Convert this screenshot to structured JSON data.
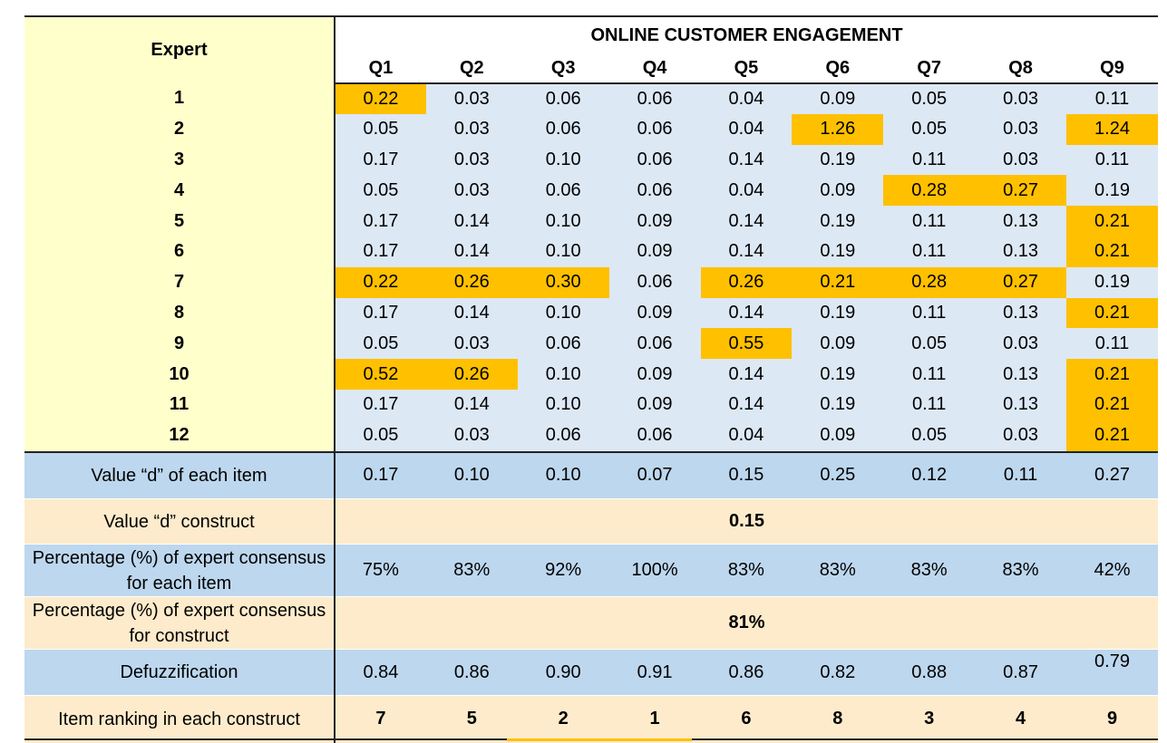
{
  "header": {
    "expert_label": "Expert",
    "construct_title": "ONLINE CUSTOMER ENGAGEMENT",
    "items": [
      "Q1",
      "Q2",
      "Q3",
      "Q4",
      "Q5",
      "Q6",
      "Q7",
      "Q8",
      "Q9"
    ]
  },
  "experts": [
    {
      "id": "1",
      "values": [
        "0.22",
        "0.03",
        "0.06",
        "0.06",
        "0.04",
        "0.09",
        "0.05",
        "0.03",
        "0.11"
      ],
      "highlight": [
        true,
        false,
        false,
        false,
        false,
        false,
        false,
        false,
        false
      ]
    },
    {
      "id": "2",
      "values": [
        "0.05",
        "0.03",
        "0.06",
        "0.06",
        "0.04",
        "1.26",
        "0.05",
        "0.03",
        "1.24"
      ],
      "highlight": [
        false,
        false,
        false,
        false,
        false,
        true,
        false,
        false,
        true
      ]
    },
    {
      "id": "3",
      "values": [
        "0.17",
        "0.03",
        "0.10",
        "0.06",
        "0.14",
        "0.19",
        "0.11",
        "0.03",
        "0.11"
      ],
      "highlight": [
        false,
        false,
        false,
        false,
        false,
        false,
        false,
        false,
        false
      ]
    },
    {
      "id": "4",
      "values": [
        "0.05",
        "0.03",
        "0.06",
        "0.06",
        "0.04",
        "0.09",
        "0.28",
        "0.27",
        "0.19"
      ],
      "highlight": [
        false,
        false,
        false,
        false,
        false,
        false,
        true,
        true,
        false
      ]
    },
    {
      "id": "5",
      "values": [
        "0.17",
        "0.14",
        "0.10",
        "0.09",
        "0.14",
        "0.19",
        "0.11",
        "0.13",
        "0.21"
      ],
      "highlight": [
        false,
        false,
        false,
        false,
        false,
        false,
        false,
        false,
        true
      ]
    },
    {
      "id": "6",
      "values": [
        "0.17",
        "0.14",
        "0.10",
        "0.09",
        "0.14",
        "0.19",
        "0.11",
        "0.13",
        "0.21"
      ],
      "highlight": [
        false,
        false,
        false,
        false,
        false,
        false,
        false,
        false,
        true
      ]
    },
    {
      "id": "7",
      "values": [
        "0.22",
        "0.26",
        "0.30",
        "0.06",
        "0.26",
        "0.21",
        "0.28",
        "0.27",
        "0.19"
      ],
      "highlight": [
        true,
        true,
        true,
        false,
        true,
        true,
        true,
        true,
        false
      ]
    },
    {
      "id": "8",
      "values": [
        "0.17",
        "0.14",
        "0.10",
        "0.09",
        "0.14",
        "0.19",
        "0.11",
        "0.13",
        "0.21"
      ],
      "highlight": [
        false,
        false,
        false,
        false,
        false,
        false,
        false,
        false,
        true
      ]
    },
    {
      "id": "9",
      "values": [
        "0.05",
        "0.03",
        "0.06",
        "0.06",
        "0.55",
        "0.09",
        "0.05",
        "0.03",
        "0.11"
      ],
      "highlight": [
        false,
        false,
        false,
        false,
        true,
        false,
        false,
        false,
        false
      ]
    },
    {
      "id": "10",
      "values": [
        "0.52",
        "0.26",
        "0.10",
        "0.09",
        "0.14",
        "0.19",
        "0.11",
        "0.13",
        "0.21"
      ],
      "highlight": [
        true,
        true,
        false,
        false,
        false,
        false,
        false,
        false,
        true
      ]
    },
    {
      "id": "11",
      "values": [
        "0.17",
        "0.14",
        "0.10",
        "0.09",
        "0.14",
        "0.19",
        "0.11",
        "0.13",
        "0.21"
      ],
      "highlight": [
        false,
        false,
        false,
        false,
        false,
        false,
        false,
        false,
        true
      ]
    },
    {
      "id": "12",
      "values": [
        "0.05",
        "0.03",
        "0.06",
        "0.06",
        "0.04",
        "0.09",
        "0.05",
        "0.03",
        "0.21"
      ],
      "highlight": [
        false,
        false,
        false,
        false,
        false,
        false,
        false,
        false,
        true
      ]
    }
  ],
  "summary": {
    "d_item": {
      "label": "Value “d” of each item",
      "values": [
        "0.17",
        "0.10",
        "0.10",
        "0.07",
        "0.15",
        "0.25",
        "0.12",
        "0.11",
        "0.27"
      ]
    },
    "d_construct": {
      "label": "Value “d” construct",
      "value": "0.15"
    },
    "pct_item": {
      "label": "Percentage (%) of expert consensus for each item",
      "values": [
        "75%",
        "83%",
        "92%",
        "100%",
        "83%",
        "83%",
        "83%",
        "83%",
        "42%"
      ]
    },
    "pct_construct": {
      "label": "Percentage (%) of expert consensus for construct",
      "value": "81%"
    },
    "defuzz": {
      "label": "Defuzzification",
      "values": [
        "0.84",
        "0.86",
        "0.90",
        "0.91",
        "0.86",
        "0.82",
        "0.88",
        "0.87",
        "0.79"
      ]
    },
    "ranking": {
      "label": "Item ranking in each construct",
      "values": [
        "7",
        "5",
        "2",
        "1",
        "6",
        "8",
        "3",
        "4",
        "9"
      ]
    }
  },
  "colors": {
    "highlight": "#ffc000",
    "value_bg": "#dde8f5",
    "expert_bg": "#ffffcc",
    "summary_blue": "#bdd7ee",
    "summary_tan": "#fdebcb"
  }
}
